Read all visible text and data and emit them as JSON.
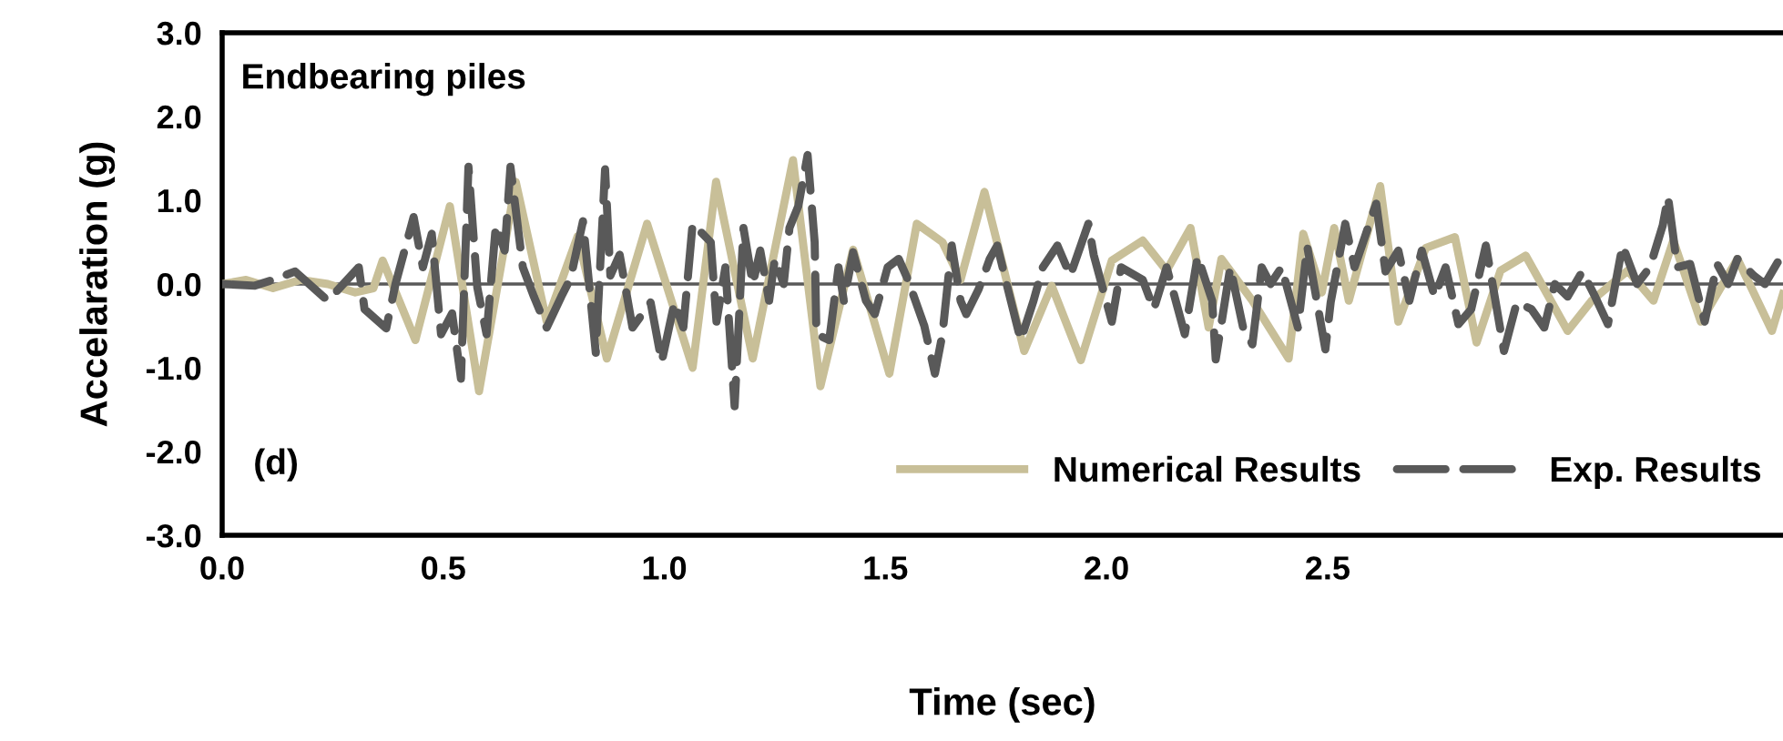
{
  "chart_data": {
    "type": "line",
    "xlabel": "Time (sec)",
    "ylabel": "Accelaration (g)",
    "annotations": [
      "Endbearing piles",
      "(d)"
    ],
    "xlim": [
      0,
      3.53
    ],
    "xticks": [
      {
        "value": 0,
        "label": "0.0"
      },
      {
        "value": 0.5,
        "label": "0.5"
      },
      {
        "value": 1,
        "label": "1.0"
      },
      {
        "value": 1.5,
        "label": "1.5"
      },
      {
        "value": 2,
        "label": "2.0"
      },
      {
        "value": 2.5,
        "label": "2.5"
      }
    ],
    "ylim": [
      -3,
      3
    ],
    "yticks": [
      {
        "value": -3,
        "label": "-3.0"
      },
      {
        "value": -2,
        "label": "-2.0"
      },
      {
        "value": -1,
        "label": "-1.0"
      },
      {
        "value": 0,
        "label": "0.0"
      },
      {
        "value": 1,
        "label": "1.0"
      },
      {
        "value": 2,
        "label": "2.0"
      },
      {
        "value": 3,
        "label": "3.0"
      }
    ],
    "grid": false,
    "legend": "bottom right",
    "ref_lines": [
      {
        "axis": "y",
        "value": 0,
        "color": "#595959"
      }
    ],
    "series": [
      {
        "name": "Numerical Results",
        "color": "#c8bf98",
        "line_style": "solid",
        "x": [
          0,
          0.054,
          0.115,
          0.177,
          0.239,
          0.301,
          0.342,
          0.363,
          0.437,
          0.515,
          0.581,
          0.664,
          0.734,
          0.804,
          0.87,
          0.961,
          1.064,
          1.117,
          1.2,
          1.291,
          1.353,
          1.427,
          1.509,
          1.571,
          1.629,
          1.67,
          1.724,
          1.814,
          1.876,
          1.942,
          2.012,
          2.082,
          2.136,
          2.19,
          2.231,
          2.26,
          2.33,
          2.412,
          2.445,
          2.487,
          2.515,
          2.548,
          2.619,
          2.66,
          2.722,
          2.788,
          2.837,
          2.891,
          2.948,
          3.043,
          3.097,
          3.179,
          3.237,
          3.282,
          3.344,
          3.427,
          3.505,
          3.53
        ],
        "values": [
          0,
          0.05,
          -0.05,
          0.05,
          0,
          -0.1,
          -0.05,
          0.28,
          -0.67,
          0.93,
          -1.28,
          1.22,
          -0.45,
          0.57,
          -0.89,
          0.72,
          -1.0,
          1.22,
          -0.89,
          1.48,
          -1.22,
          0.41,
          -1.07,
          0.72,
          0.5,
          0.05,
          1.1,
          -0.8,
          -0.02,
          -0.91,
          0.28,
          0.52,
          0.16,
          0.67,
          -0.52,
          0.3,
          -0.2,
          -0.89,
          0.6,
          -0.1,
          0.67,
          -0.2,
          1.17,
          -0.45,
          0.43,
          0.56,
          -0.7,
          0.16,
          0.34,
          -0.56,
          -0.2,
          0.16,
          -0.2,
          0.52,
          -0.45,
          0.3,
          -0.56,
          -0.12
        ]
      },
      {
        "name": "Exp. Results",
        "color": "#595959",
        "line_style": "dashed",
        "x": [
          0,
          0.074,
          0.115,
          0.165,
          0.239,
          0.309,
          0.322,
          0.371,
          0.392,
          0.433,
          0.454,
          0.474,
          0.495,
          0.52,
          0.54,
          0.557,
          0.577,
          0.598,
          0.619,
          0.639,
          0.652,
          0.68,
          0.705,
          0.734,
          0.767,
          0.788,
          0.816,
          0.845,
          0.866,
          0.878,
          0.899,
          0.928,
          0.969,
          0.994,
          1.023,
          1.043,
          1.064,
          1.105,
          1.118,
          1.138,
          1.159,
          1.179,
          1.2,
          1.217,
          1.237,
          1.25,
          1.27,
          1.283,
          1.303,
          1.324,
          1.34,
          1.344,
          1.373,
          1.394,
          1.406,
          1.427,
          1.456,
          1.476,
          1.505,
          1.53,
          1.551,
          1.588,
          1.612,
          1.629,
          1.65,
          1.67,
          1.683,
          1.711,
          1.736,
          1.753,
          1.777,
          1.806,
          1.835,
          1.856,
          1.889,
          1.918,
          1.959,
          1.971,
          2.012,
          2.033,
          2.082,
          2.107,
          2.136,
          2.177,
          2.206,
          2.239,
          2.247,
          2.28,
          2.309,
          2.33,
          2.351,
          2.371,
          2.396,
          2.433,
          2.454,
          2.495,
          2.507,
          2.54,
          2.561,
          2.61,
          2.631,
          2.66,
          2.685,
          2.713,
          2.742,
          2.767,
          2.796,
          2.825,
          2.858,
          2.878,
          2.899,
          2.928,
          2.961,
          2.99,
          3.014,
          3.043,
          3.076,
          3.105,
          3.134,
          3.167,
          3.2,
          3.229,
          3.258,
          3.27,
          3.291,
          3.32,
          3.353,
          3.381,
          3.406,
          3.427,
          3.464,
          3.489,
          3.518
        ],
        "values": [
          0,
          -0.02,
          0.05,
          0.15,
          -0.2,
          0.2,
          -0.3,
          -0.53,
          0,
          0.8,
          0.2,
          0.6,
          -0.6,
          -0.35,
          -1.13,
          1.4,
          -0.04,
          -0.6,
          0.7,
          0.4,
          1.4,
          0.2,
          -0.15,
          -0.52,
          -0.15,
          0.07,
          0.75,
          -0.82,
          1.37,
          0.1,
          0.35,
          -0.52,
          -0.22,
          -0.93,
          -0.22,
          -0.52,
          0.72,
          0.5,
          -0.45,
          0.2,
          -1.46,
          0.67,
          0,
          0.4,
          -0.2,
          0.3,
          0,
          0.67,
          0.93,
          1.54,
          0.5,
          -0.6,
          -0.67,
          0.2,
          -0.2,
          0.38,
          -0.2,
          -0.36,
          0.2,
          0.3,
          0.05,
          -0.5,
          -1.07,
          -0.6,
          0.46,
          -0.2,
          -0.36,
          -0.06,
          0.3,
          0.46,
          -0.06,
          -0.67,
          -0.2,
          0.2,
          0.46,
          0.1,
          0.72,
          0.35,
          -0.45,
          0.2,
          0.05,
          -0.3,
          0.2,
          -0.6,
          0.33,
          -0.2,
          -0.9,
          0.2,
          -0.52,
          -0.72,
          0.2,
          0,
          0.2,
          -0.52,
          0.45,
          -0.78,
          -0.22,
          0.72,
          0.2,
          0.96,
          0.15,
          0.4,
          -0.2,
          0.4,
          -0.15,
          0.2,
          -0.48,
          -0.3,
          0.46,
          -0.15,
          -0.8,
          -0.22,
          -0.3,
          -0.52,
          0,
          -0.15,
          0.15,
          -0.15,
          -0.48,
          0.46,
          0,
          0.2,
          0.7,
          1.04,
          0.2,
          0.24,
          -0.45,
          0.24,
          0,
          0.3,
          0.1,
          0,
          0.26
        ]
      }
    ]
  }
}
